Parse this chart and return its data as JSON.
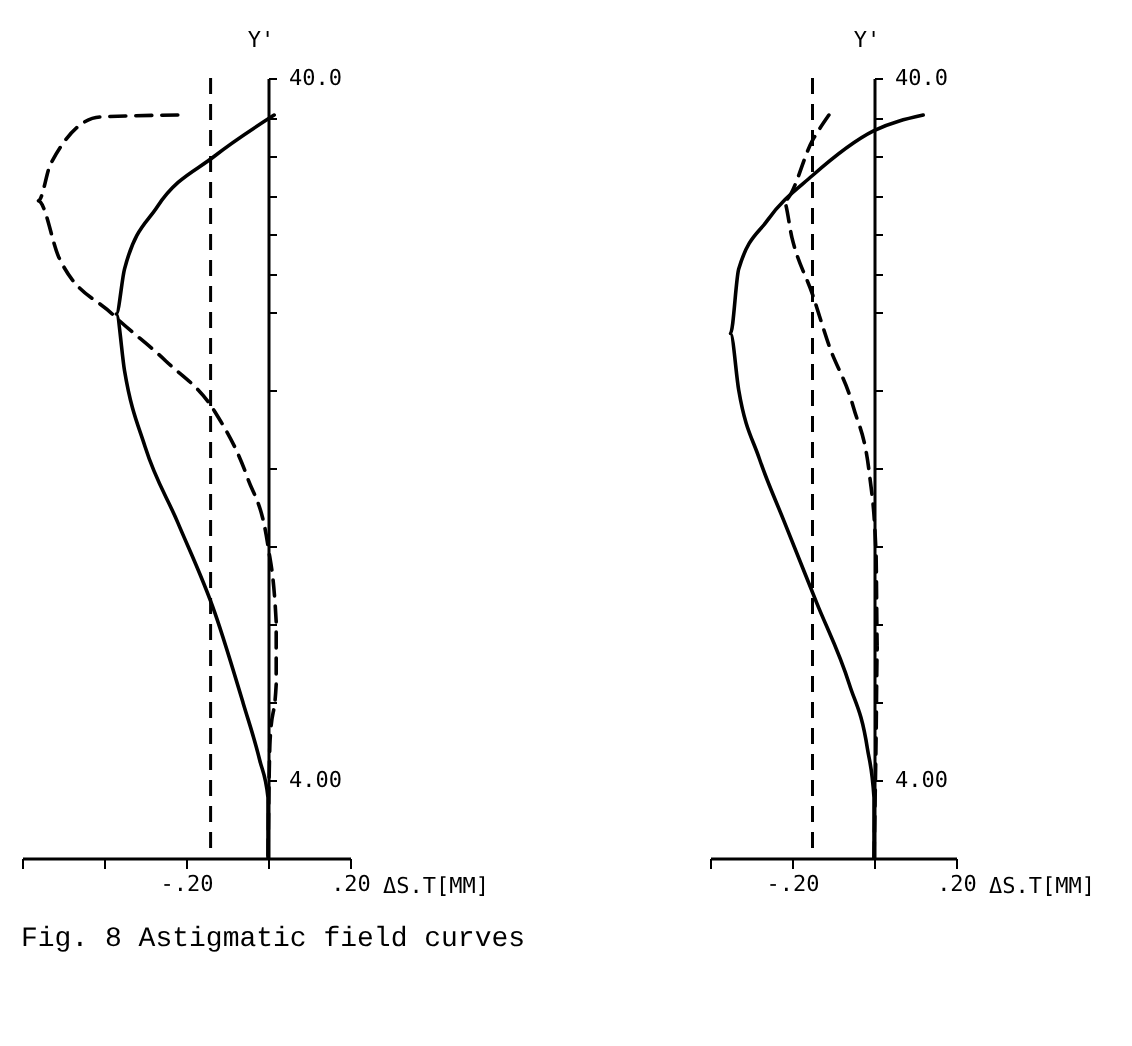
{
  "chart_data": [
    {
      "type": "line",
      "xlabel": "ΔS.T[MM]",
      "ylabel": "Y'",
      "xlim": [
        -0.6,
        0.2
      ],
      "ylim": [
        0,
        40
      ],
      "xticks": [
        {
          "value": -0.6,
          "label": null
        },
        {
          "value": -0.4,
          "label": null
        },
        {
          "value": -0.2,
          "label": "-.20"
        },
        {
          "value": 0,
          "label": null
        },
        {
          "value": 0.2,
          "label": ".20"
        }
      ],
      "yticks": [
        {
          "value": 4,
          "label": "4.00"
        },
        {
          "value": 8,
          "label": null
        },
        {
          "value": 12,
          "label": null
        },
        {
          "value": 16,
          "label": null
        },
        {
          "value": 20,
          "label": null
        },
        {
          "value": 24,
          "label": null
        },
        {
          "value": 28,
          "label": null
        },
        {
          "value": 30,
          "label": null
        },
        {
          "value": 32,
          "label": null
        },
        {
          "value": 34,
          "label": null
        },
        {
          "value": 36,
          "label": null
        },
        {
          "value": 38,
          "label": null
        },
        {
          "value": 40,
          "label": "40.0"
        }
      ],
      "grid": false,
      "marker": "none",
      "series": [
        {
          "color": "#000000",
          "line_style": "solid",
          "x": [
            0.015,
            -0.13,
            -0.27,
            -0.35,
            -0.37,
            -0.35,
            -0.3,
            -0.22,
            -0.13,
            -0.06,
            -0.02,
            0,
            0
          ],
          "values": [
            38.1,
            36,
            33.4,
            30.2,
            27.9,
            25,
            21.1,
            17.2,
            12.6,
            7.9,
            5,
            3.1,
            0
          ]
        },
        {
          "color": "#000000",
          "line_style": "dashed",
          "x": [
            -0.22,
            -0.41,
            -0.53,
            -0.56,
            -0.51,
            -0.38,
            -0.25,
            -0.13,
            -0.05,
            0,
            0.02,
            0.02,
            0.005,
            0
          ],
          "values": [
            38.1,
            38,
            35.6,
            33.7,
            30.8,
            27.9,
            25.5,
            22.9,
            19.5,
            16,
            12.1,
            8.9,
            6,
            0
          ]
        }
      ],
      "ref_lines": [
        {
          "axis": "x",
          "value": -0.14,
          "color": "#000000",
          "line_style": "dashed"
        }
      ],
      "annotations": [
        "Fig. 8  Astigmatic field curves"
      ]
    },
    {
      "type": "line",
      "xlabel": "ΔS.T[MM]",
      "ylabel": "Y'",
      "xlim": [
        -0.4,
        0.2
      ],
      "ylim": [
        0,
        40
      ],
      "xticks": [
        {
          "value": -0.4,
          "label": null
        },
        {
          "value": -0.2,
          "label": "-.20"
        },
        {
          "value": 0,
          "label": null
        },
        {
          "value": 0.2,
          "label": ".20"
        }
      ],
      "yticks": [
        {
          "value": 4,
          "label": "4.00"
        },
        {
          "value": 8,
          "label": null
        },
        {
          "value": 12,
          "label": null
        },
        {
          "value": 16,
          "label": null
        },
        {
          "value": 20,
          "label": null
        },
        {
          "value": 24,
          "label": null
        },
        {
          "value": 28,
          "label": null
        },
        {
          "value": 30,
          "label": null
        },
        {
          "value": 32,
          "label": null
        },
        {
          "value": 34,
          "label": null
        },
        {
          "value": 36,
          "label": null
        },
        {
          "value": 38,
          "label": null
        },
        {
          "value": 40,
          "label": "40.0"
        }
      ],
      "grid": false,
      "marker": "none",
      "series": [
        {
          "color": "#000000",
          "line_style": "solid",
          "x": [
            0.12,
            0,
            -0.15,
            -0.26,
            -0.33,
            -0.35,
            -0.33,
            -0.28,
            -0.22,
            -0.14,
            -0.06,
            -0.016,
            0,
            0
          ],
          "values": [
            38.1,
            37.3,
            35,
            32.7,
            30.2,
            26.9,
            24,
            20.5,
            17.3,
            13.1,
            8.9,
            5.6,
            3.1,
            0
          ]
        },
        {
          "color": "#000000",
          "line_style": "dashed",
          "x": [
            -0.11,
            -0.15,
            -0.22,
            -0.2,
            -0.15,
            -0.11,
            -0.05,
            -0.01,
            0.005,
            0.008,
            0.005,
            0
          ],
          "values": [
            38.1,
            36.8,
            33.7,
            31.8,
            28.9,
            26.3,
            23.1,
            19.5,
            15.6,
            10.8,
            6,
            0
          ]
        }
      ],
      "ref_lines": [
        {
          "axis": "x",
          "value": -0.15,
          "color": "#000000",
          "line_style": "dashed"
        }
      ]
    }
  ]
}
